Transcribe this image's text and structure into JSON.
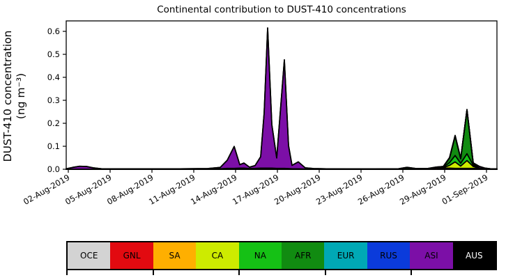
{
  "chart_data": {
    "type": "area",
    "stacked": true,
    "title": "Continental contribution to DUST-410 concentrations",
    "ylabel": "DUST-410 concentration (ng m⁻³)",
    "ylabel_line1": "DUST-410 concentration",
    "ylabel_line2": "(ng m⁻³)",
    "xlabel": "",
    "grid": false,
    "ylim": [
      0,
      0.6455
    ],
    "yticks": [
      0.0,
      0.1,
      0.2,
      0.3,
      0.4,
      0.5,
      0.6
    ],
    "xlim_days": [
      0.85,
      31.75
    ],
    "xtick_days": [
      1,
      4,
      7,
      10,
      13,
      16,
      19,
      22,
      25,
      28,
      31
    ],
    "xtick_labels": [
      "02-Aug-2019",
      "05-Aug-2019",
      "08-Aug-2019",
      "11-Aug-2019",
      "14-Aug-2019",
      "17-Aug-2019",
      "20-Aug-2019",
      "23-Aug-2019",
      "26-Aug-2019",
      "29-Aug-2019",
      "01-Sep-2019"
    ],
    "x_days": [
      0.85,
      1.3,
      1.8,
      2.3,
      2.8,
      3.4,
      5,
      7,
      9,
      11,
      11.9,
      12.4,
      12.9,
      13.3,
      13.6,
      14,
      14.4,
      14.8,
      15.05,
      15.3,
      15.6,
      15.95,
      16.5,
      16.8,
      17.05,
      17.5,
      18,
      18.6,
      19.5,
      21,
      23,
      24.7,
      25.3,
      25.9,
      26.8,
      27.4,
      27.9,
      28.35,
      28.75,
      29.15,
      29.6,
      30.05,
      30.5,
      30.9,
      31.3,
      31.75
    ],
    "x_units": "days since 01-Aug-2019",
    "edge_color": "#000000",
    "series": [
      {
        "name": "OCE",
        "color": "#d3d3d3",
        "values": 0
      },
      {
        "name": "GNL",
        "color": "#e20a10",
        "values": [
          0,
          0,
          0,
          0,
          0,
          0,
          0,
          0,
          0,
          0,
          0,
          0,
          0,
          0,
          0,
          0,
          0,
          0,
          0,
          0,
          0,
          0,
          0,
          0,
          0,
          0,
          0,
          0,
          0,
          0,
          0,
          0,
          0,
          0,
          0.001,
          0.006,
          0.002,
          0.001,
          0,
          0,
          0,
          0,
          0,
          0,
          0,
          0
        ]
      },
      {
        "name": "SA",
        "color": "#ffaf00",
        "values": [
          0,
          0,
          0,
          0,
          0,
          0,
          0,
          0,
          0,
          0,
          0,
          0,
          0,
          0,
          0,
          0,
          0,
          0,
          0,
          0,
          0,
          0,
          0,
          0,
          0,
          0,
          0,
          0,
          0,
          0,
          0,
          0,
          0,
          0,
          0.001,
          0.002,
          0.003,
          0.004,
          0.004,
          0.004,
          0.004,
          0.004,
          0.002,
          0.001,
          0,
          0
        ]
      },
      {
        "name": "CA",
        "color": "#cdeb00",
        "values": [
          0,
          0,
          0,
          0,
          0,
          0,
          0,
          0,
          0,
          0,
          0,
          0,
          0,
          0,
          0,
          0,
          0,
          0,
          0,
          0,
          0,
          0,
          0,
          0,
          0,
          0,
          0,
          0,
          0,
          0,
          0,
          0,
          0,
          0,
          0,
          0,
          0.002,
          0.012,
          0.028,
          0.01,
          0.034,
          0.008,
          0.001,
          0,
          0,
          0
        ]
      },
      {
        "name": "NA",
        "color": "#15c115",
        "values": [
          0,
          0,
          0,
          0,
          0,
          0,
          0,
          0,
          0,
          0,
          0.002,
          0.004,
          0.004,
          0.005,
          0.005,
          0.003,
          0.004,
          0.005,
          0.005,
          0.005,
          0.005,
          0.004,
          0.004,
          0.003,
          0.002,
          0.002,
          0.001,
          0,
          0,
          0,
          0,
          0.001,
          0.007,
          0.002,
          0,
          0,
          0.002,
          0.012,
          0.028,
          0.012,
          0.03,
          0.006,
          0.001,
          0,
          0,
          0
        ]
      },
      {
        "name": "AFR",
        "color": "#118b11",
        "values": [
          0,
          0,
          0,
          0,
          0,
          0,
          0,
          0,
          0,
          0,
          0,
          0,
          0,
          0,
          0,
          0,
          0,
          0,
          0,
          0,
          0,
          0,
          0,
          0,
          0,
          0,
          0,
          0,
          0,
          0,
          0,
          0,
          0,
          0,
          0,
          0,
          0.001,
          0.02,
          0.085,
          0.02,
          0.19,
          0.006,
          0.001,
          0,
          0,
          0
        ]
      },
      {
        "name": "EUR",
        "color": "#00a8b5",
        "values": 0
      },
      {
        "name": "RUS",
        "color": "#0b3bdb",
        "values": 0
      },
      {
        "name": "ASI",
        "color": "#7c0fa7",
        "values": [
          0.002,
          0.008,
          0.013,
          0.012,
          0.006,
          0.002,
          0.002,
          0.002,
          0.002,
          0.003,
          0.006,
          0.035,
          0.095,
          0.015,
          0.022,
          0.006,
          0.012,
          0.05,
          0.24,
          0.61,
          0.19,
          0.045,
          0.472,
          0.1,
          0.015,
          0.03,
          0.005,
          0.003,
          0.002,
          0.0015,
          0.0015,
          0.0015,
          0.0015,
          0.0015,
          0.0015,
          0.0015,
          0.002,
          0.002,
          0.002,
          0.002,
          0.002,
          0.004,
          0.007,
          0.004,
          0.002,
          0.002
        ]
      },
      {
        "name": "AUS",
        "color": "#000000",
        "values": 0
      }
    ]
  },
  "legend": {
    "items": [
      {
        "label": "OCE",
        "color": "#d3d3d3",
        "text_color": "#000000"
      },
      {
        "label": "GNL",
        "color": "#e20a10",
        "text_color": "#000000"
      },
      {
        "label": "SA",
        "color": "#ffaf00",
        "text_color": "#000000"
      },
      {
        "label": "CA",
        "color": "#cdeb00",
        "text_color": "#000000"
      },
      {
        "label": "NA",
        "color": "#15c115",
        "text_color": "#000000"
      },
      {
        "label": "AFR",
        "color": "#118b11",
        "text_color": "#000000"
      },
      {
        "label": "EUR",
        "color": "#00a8b5",
        "text_color": "#000000"
      },
      {
        "label": "RUS",
        "color": "#0b3bdb",
        "text_color": "#000000"
      },
      {
        "label": "ASI",
        "color": "#7c0fa7",
        "text_color": "#000000"
      },
      {
        "label": "AUS",
        "color": "#000000",
        "text_color": "#ffffff"
      }
    ]
  }
}
